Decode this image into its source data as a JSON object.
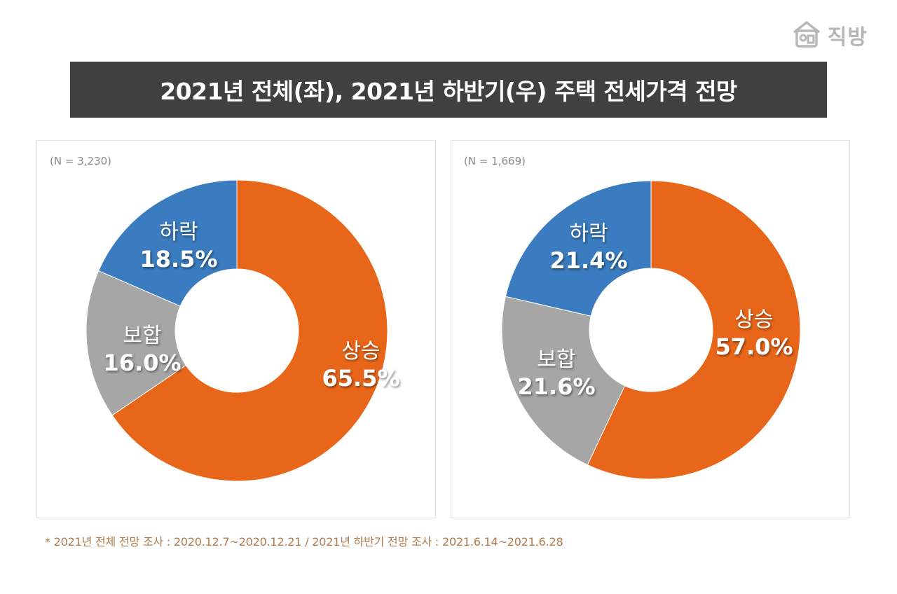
{
  "logo": {
    "text": "직방",
    "icon": "house-icon"
  },
  "title": "2021년 전체(좌), 2021년 하반기(우) 주택 전세가격 전망",
  "chart_data": [
    {
      "type": "pie",
      "subtitle": "(N = 3,230)",
      "donut": true,
      "slices": [
        {
          "label": "상승",
          "value": 65.5,
          "display": "65.5%",
          "color": "#e8661a"
        },
        {
          "label": "보합",
          "value": 16.0,
          "display": "16.0%",
          "color": "#a6a6a6"
        },
        {
          "label": "하락",
          "value": 18.5,
          "display": "18.5%",
          "color": "#3a7cbf"
        }
      ]
    },
    {
      "type": "pie",
      "subtitle": "(N = 1,669)",
      "donut": true,
      "slices": [
        {
          "label": "상승",
          "value": 57.0,
          "display": "57.0%",
          "color": "#e8661a"
        },
        {
          "label": "보합",
          "value": 21.6,
          "display": "21.6%",
          "color": "#a6a6a6"
        },
        {
          "label": "하락",
          "value": 21.4,
          "display": "21.4%",
          "color": "#3a7cbf"
        }
      ]
    }
  ],
  "footnote": "* 2021년 전체 전망 조사 : 2020.12.7~2020.12.21 / 2021년 하반기 전망 조사 : 2021.6.14~2021.6.28"
}
